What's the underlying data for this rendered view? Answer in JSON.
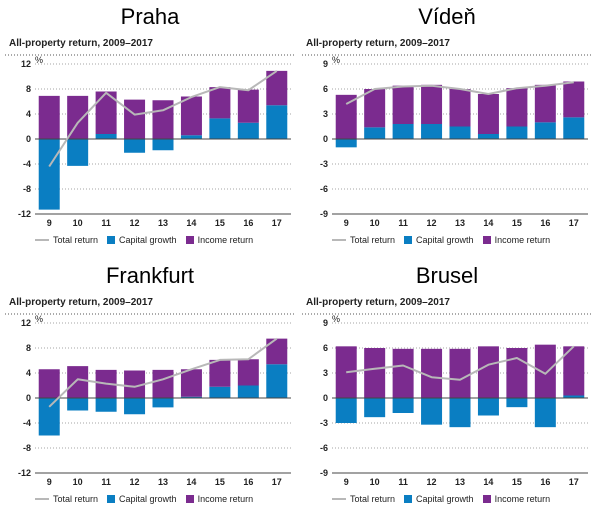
{
  "colors": {
    "capital": "#0a7ec2",
    "income": "#7b2b8f",
    "total": "#b8b8b8",
    "grid": "#888888"
  },
  "chart_data": [
    {
      "type": "bar",
      "title": "Praha",
      "subtitle": "All-property return, 2009–2017",
      "ylabel": "%",
      "categories": [
        "9",
        "10",
        "11",
        "12",
        "13",
        "14",
        "15",
        "16",
        "17"
      ],
      "ylim": [
        -12,
        12
      ],
      "yticks": [
        "12",
        "8",
        "4",
        "0",
        "-4",
        "-8",
        "-12"
      ],
      "stacked": true,
      "series": [
        {
          "name": "Capital growth",
          "type": "bar",
          "values": [
            -11.3,
            -4.3,
            0.8,
            -2.2,
            -1.8,
            0.6,
            3.3,
            2.6,
            5.4
          ]
        },
        {
          "name": "Income return",
          "type": "bar",
          "values": [
            6.9,
            6.9,
            6.8,
            6.3,
            6.2,
            6.2,
            5.0,
            5.3,
            5.5
          ]
        },
        {
          "name": "Total return",
          "type": "line",
          "values": [
            -4.4,
            2.6,
            7.4,
            3.9,
            4.6,
            6.7,
            8.3,
            7.8,
            10.9
          ]
        }
      ]
    },
    {
      "type": "bar",
      "title": "Vídeň",
      "subtitle": "All-property return, 2009–2017",
      "ylabel": "%",
      "categories": [
        "9",
        "10",
        "11",
        "12",
        "13",
        "14",
        "15",
        "16",
        "17"
      ],
      "ylim": [
        -9,
        9
      ],
      "yticks": [
        "9",
        "6",
        "3",
        "0",
        "-3",
        "-6",
        "-9"
      ],
      "stacked": true,
      "series": [
        {
          "name": "Capital growth",
          "type": "bar",
          "values": [
            -1.0,
            1.4,
            1.8,
            1.8,
            1.5,
            0.6,
            1.5,
            2.0,
            2.6
          ]
        },
        {
          "name": "Income return",
          "type": "bar",
          "values": [
            5.3,
            4.6,
            4.6,
            4.7,
            4.5,
            4.8,
            4.6,
            4.5,
            4.3
          ]
        },
        {
          "name": "Total return",
          "type": "line",
          "values": [
            4.2,
            6.0,
            6.3,
            6.4,
            6.0,
            5.4,
            6.1,
            6.4,
            6.8
          ]
        }
      ]
    },
    {
      "type": "bar",
      "title": "Frankfurt",
      "subtitle": "All-property return, 2009–2017",
      "ylabel": "%",
      "categories": [
        "9",
        "10",
        "11",
        "12",
        "13",
        "14",
        "15",
        "16",
        "17"
      ],
      "ylim": [
        -12,
        12
      ],
      "yticks": [
        "12",
        "8",
        "4",
        "0",
        "-4",
        "-8",
        "-12"
      ],
      "stacked": true,
      "series": [
        {
          "name": "Capital growth",
          "type": "bar",
          "values": [
            -6.0,
            -2.0,
            -2.2,
            -2.6,
            -1.5,
            0.2,
            1.8,
            2.0,
            5.4
          ]
        },
        {
          "name": "Income return",
          "type": "bar",
          "values": [
            4.6,
            5.1,
            4.5,
            4.4,
            4.5,
            4.4,
            4.3,
            4.2,
            4.1
          ]
        },
        {
          "name": "Total return",
          "type": "line",
          "values": [
            -1.4,
            3.0,
            2.3,
            1.8,
            3.0,
            4.6,
            6.1,
            6.2,
            9.5
          ]
        }
      ]
    },
    {
      "type": "bar",
      "title": "Brusel",
      "subtitle": "All-property return, 2009–2017",
      "ylabel": "%",
      "categories": [
        "9",
        "10",
        "11",
        "12",
        "13",
        "14",
        "15",
        "16",
        "17"
      ],
      "ylim": [
        -9,
        9
      ],
      "yticks": [
        "9",
        "6",
        "3",
        "0",
        "-3",
        "-6",
        "-9"
      ],
      "stacked": true,
      "series": [
        {
          "name": "Capital growth",
          "type": "bar",
          "values": [
            -3.0,
            -2.3,
            -1.8,
            -3.2,
            -3.5,
            -2.1,
            -1.1,
            -3.5,
            0.3
          ]
        },
        {
          "name": "Income return",
          "type": "bar",
          "values": [
            6.2,
            6.0,
            5.9,
            5.9,
            5.9,
            6.2,
            6.0,
            6.4,
            5.9
          ]
        },
        {
          "name": "Total return",
          "type": "line",
          "values": [
            3.1,
            3.5,
            3.9,
            2.5,
            2.2,
            4.0,
            4.8,
            2.9,
            6.2
          ]
        }
      ]
    }
  ],
  "legend": {
    "total": "Total return",
    "capital": "Capital growth",
    "income": "Income return"
  }
}
